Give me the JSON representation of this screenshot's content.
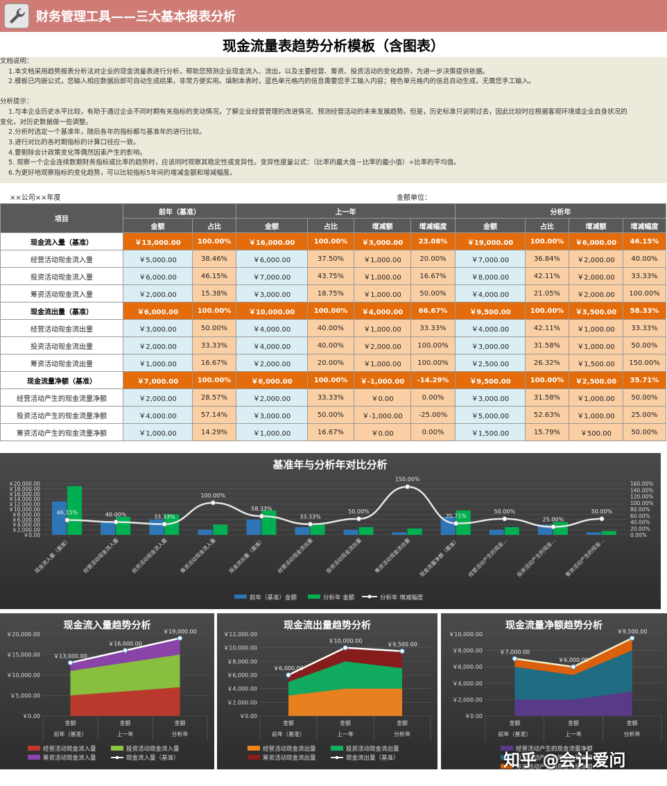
{
  "app": {
    "title": "财务管理工具——三大基本报表分析"
  },
  "document": {
    "title": "现金流量表趋势分析模板（含图表）"
  },
  "notes": {
    "doc_heading": "文档说明：",
    "doc_lines": [
      "1.本文档采用趋势报表分析法对企业的现金流量表进行分析，帮助您预测企业现金流入、流出，以及主要经营、筹资、投资活动的变化趋势，为进一步决策提供依据。",
      "2.模板已内嵌公式，您输入相应数据后即可自动生成结果，非常方便实用。填制本表时，蓝色单元格内的信息需要您手工输入内容；橙色单元格内的信息自动生成，无需您手工输入。"
    ],
    "tips_heading": "分析提示：",
    "tips_lines": [
      "1.与本企业历史水平比较，有助于通过企业不同时期有关指标的变动情况，了解企业经营管理的改进情况、预测经营活动的未来发展趋势。但是，历史标准只说明过去，因此比较时应根据客观环境或企业自身状况的",
      "变化，对历史数据做一些调整。",
      "2.分析时选定一个基准年，随后各年的指标都与基准年的进行比较。",
      "3.进行对比的各时期指标的计算口径应一致。",
      "4.要剔除会计政策变化等偶然因素产生的影响。",
      "5. 观察一个企业连续数期财务指标或比率的趋势时，应该同时观察其稳定性或变异性。变异性度量公式：（比率的最大值－比率的最小值）÷比率的平均值。",
      "6.为更好地观察指标的变化趋势，可以比较指标5年间的增减金额和增减幅度。"
    ]
  },
  "meta": {
    "company": "××公司××年度",
    "unit": "金额单位："
  },
  "table": {
    "item_header": "项目",
    "groups": [
      "前年（基准）",
      "上一年",
      "分析年"
    ],
    "sub_base": [
      "金额",
      "占比"
    ],
    "sub_other": [
      "金额",
      "占比",
      "增减额",
      "增减幅度"
    ],
    "rows": [
      {
        "name": "现金流入量（基准）",
        "total": true,
        "v": [
          "￥13,000.00",
          "100.00%",
          "￥16,000.00",
          "100.00%",
          "￥3,000.00",
          "23.08%",
          "￥19,000.00",
          "100.00%",
          "￥6,000.00",
          "46.15%"
        ]
      },
      {
        "name": "经营活动现金流入量",
        "total": false,
        "v": [
          "￥5,000.00",
          "38.46%",
          "￥6,000.00",
          "37.50%",
          "￥1,000.00",
          "20.00%",
          "￥7,000.00",
          "36.84%",
          "￥2,000.00",
          "40.00%"
        ]
      },
      {
        "name": "投资活动现金流入量",
        "total": false,
        "v": [
          "￥6,000.00",
          "46.15%",
          "￥7,000.00",
          "43.75%",
          "￥1,000.00",
          "16.67%",
          "￥8,000.00",
          "42.11%",
          "￥2,000.00",
          "33.33%"
        ]
      },
      {
        "name": "筹资活动现金流入量",
        "total": false,
        "v": [
          "￥2,000.00",
          "15.38%",
          "￥3,000.00",
          "18.75%",
          "￥1,000.00",
          "50.00%",
          "￥4,000.00",
          "21.05%",
          "￥2,000.00",
          "100.00%"
        ]
      },
      {
        "name": "现金流出量（基准）",
        "total": true,
        "v": [
          "￥6,000.00",
          "100.00%",
          "￥10,000.00",
          "100.00%",
          "￥4,000.00",
          "66.67%",
          "￥9,500.00",
          "100.00%",
          "￥3,500.00",
          "58.33%"
        ]
      },
      {
        "name": "经营活动现金流出量",
        "total": false,
        "v": [
          "￥3,000.00",
          "50.00%",
          "￥4,000.00",
          "40.00%",
          "￥1,000.00",
          "33.33%",
          "￥4,000.00",
          "42.11%",
          "￥1,000.00",
          "33.33%"
        ]
      },
      {
        "name": "投资活动现金流出量",
        "total": false,
        "v": [
          "￥2,000.00",
          "33.33%",
          "￥4,000.00",
          "40.00%",
          "￥2,000.00",
          "100.00%",
          "￥3,000.00",
          "31.58%",
          "￥1,000.00",
          "50.00%"
        ]
      },
      {
        "name": "筹资活动现金流出量",
        "total": false,
        "v": [
          "￥1,000.00",
          "16.67%",
          "￥2,000.00",
          "20.00%",
          "￥1,000.00",
          "100.00%",
          "￥2,500.00",
          "26.32%",
          "￥1,500.00",
          "150.00%"
        ]
      },
      {
        "name": "现金流量净额（基准）",
        "total": true,
        "v": [
          "￥7,000.00",
          "100.00%",
          "￥6,000.00",
          "100.00%",
          "￥-1,000.00",
          "-14.29%",
          "￥9,500.00",
          "100.00%",
          "￥2,500.00",
          "35.71%"
        ]
      },
      {
        "name": "经营活动产生的现金流量净额",
        "total": false,
        "v": [
          "￥2,000.00",
          "28.57%",
          "￥2,000.00",
          "33.33%",
          "￥0.00",
          "0.00%",
          "￥3,000.00",
          "31.58%",
          "￥1,000.00",
          "50.00%"
        ]
      },
      {
        "name": "投资活动产生的现金流量净额",
        "total": false,
        "v": [
          "￥4,000.00",
          "57.14%",
          "￥3,000.00",
          "50.00%",
          "￥-1,000.00",
          "-25.00%",
          "￥5,000.00",
          "52.63%",
          "￥1,000.00",
          "25.00%"
        ]
      },
      {
        "name": "筹资活动产生的现金流量净额",
        "total": false,
        "v": [
          "￥1,000.00",
          "14.29%",
          "￥1,000.00",
          "16.67%",
          "￥0.00",
          "0.00%",
          "￥1,500.00",
          "15.79%",
          "￥500.00",
          "50.00%"
        ]
      }
    ]
  },
  "chart_data": [
    {
      "type": "bar",
      "title": "基准年与分析年对比分析",
      "categories": [
        "现金流入量（基准）",
        "经营活动现金流入量",
        "投资活动现金流入量",
        "筹资活动现金流入量",
        "现金流出量（基准）",
        "经营活动现金流出量",
        "投资活动现金流出量",
        "筹资活动现金流出量",
        "现金流量净额（基准）",
        "经营活动产生的现金…",
        "投资活动产生的现金…",
        "筹资活动产生的现金…"
      ],
      "series": [
        {
          "name": "前年（基准）金额",
          "color": "#2e75b6",
          "values": [
            13000,
            5000,
            6000,
            2000,
            6000,
            3000,
            2000,
            1000,
            7000,
            2000,
            4000,
            1000
          ]
        },
        {
          "name": "分析年 金额",
          "color": "#00b050",
          "values": [
            19000,
            7000,
            8000,
            4000,
            9500,
            4000,
            3000,
            2500,
            9500,
            3000,
            5000,
            1500
          ]
        },
        {
          "name": "分析年 增减幅度",
          "color": "#ffffff",
          "axis": "right",
          "values": [
            46.15,
            40.0,
            33.33,
            100.0,
            58.33,
            33.33,
            50.0,
            150.0,
            35.71,
            50.0,
            25.0,
            50.0
          ],
          "labels": [
            "46.15%",
            "40.00%",
            "33.33%",
            "100.00%",
            "58.33%",
            "33.33%",
            "50.00%",
            "150.00%",
            "35.71%",
            "50.00%",
            "25.00%",
            "50.00%"
          ]
        }
      ],
      "ylim": [
        0,
        20000
      ],
      "yticks": [
        "￥0.00",
        "￥2,000.00",
        "￥4,000.00",
        "￥6,000.00",
        "￥8,000.00",
        "￥10,000.00",
        "￥12,000.00",
        "￥14,000.00",
        "￥16,000.00",
        "￥18,000.00",
        "￥20,000.00"
      ],
      "y2lim": [
        0,
        160
      ],
      "y2ticks": [
        "0.00%",
        "20.00%",
        "40.00%",
        "60.00%",
        "80.00%",
        "100.00%",
        "120.00%",
        "140.00%",
        "160.00%"
      ],
      "legend": "bottom"
    },
    {
      "type": "area",
      "title": "现金流入量趋势分析",
      "x": [
        "前年（基准）",
        "上一年",
        "分析年"
      ],
      "xsub": "金额",
      "series": [
        {
          "name": "经营活动现金流入量",
          "color": "#c0392b",
          "values": [
            5000,
            6000,
            7000
          ]
        },
        {
          "name": "投资活动现金流入量",
          "color": "#8cc63e",
          "values": [
            6000,
            7000,
            8000
          ]
        },
        {
          "name": "筹资活动现金流入量",
          "color": "#8e44ad",
          "values": [
            2000,
            3000,
            4000
          ]
        },
        {
          "name": "现金流入量（基准）",
          "color": "#ffffff",
          "line": true,
          "values": [
            13000,
            16000,
            19000
          ],
          "labels": [
            "￥13,000.00",
            "￥16,000.00",
            "￥19,000.00"
          ]
        }
      ],
      "ylim": [
        0,
        20000
      ],
      "yticks": [
        "￥0.00",
        "￥5,000.00",
        "￥10,000.00",
        "￥15,000.00",
        "￥20,000.00"
      ],
      "legend": "bottom"
    },
    {
      "type": "area",
      "title": "现金流出量趋势分析",
      "x": [
        "前年（基准）",
        "上一年",
        "分析年"
      ],
      "xsub": "金额",
      "series": [
        {
          "name": "经营活动现金流出量",
          "color": "#f0841e",
          "values": [
            3000,
            4000,
            4000
          ]
        },
        {
          "name": "投资活动现金流出量",
          "color": "#10b060",
          "values": [
            2000,
            4000,
            3000
          ]
        },
        {
          "name": "筹资活动现金流出量",
          "color": "#8b1a1a",
          "values": [
            1000,
            2000,
            2500
          ]
        },
        {
          "name": "现金流出量（基准）",
          "color": "#ffffff",
          "line": true,
          "values": [
            6000,
            10000,
            9500
          ],
          "labels": [
            "￥6,000.00",
            "￥10,000.00",
            "￥9,500.00"
          ]
        }
      ],
      "ylim": [
        0,
        12000
      ],
      "yticks": [
        "￥0.00",
        "￥2,000.00",
        "￥4,000.00",
        "￥6,000.00",
        "￥8,000.00",
        "￥10,000.00",
        "￥12,000.00"
      ],
      "legend": "bottom"
    },
    {
      "type": "area",
      "title": "现金流量净额趋势分析",
      "x": [
        "前年（基准）",
        "上一年",
        "分析年"
      ],
      "xsub": "金额",
      "series": [
        {
          "name": "经营活动产生的现金流量净额",
          "color": "#5b3a8c",
          "values": [
            2000,
            2000,
            3000
          ]
        },
        {
          "name": "投资活动产生的现金流量净额",
          "color": "#1f6f86",
          "values": [
            4000,
            3000,
            5000
          ]
        },
        {
          "name": "筹资活动产生的现金流量净额",
          "color": "#e3620b",
          "values": [
            1000,
            1000,
            1500
          ]
        },
        {
          "name": "现金流量净额（基准）",
          "color": "#f2f0c8",
          "line": true,
          "values": [
            7000,
            6000,
            9500
          ],
          "labels": [
            "￥7,000.00",
            "￥6,000.00",
            "￥9,500.00"
          ]
        }
      ],
      "ylim": [
        0,
        10000
      ],
      "yticks": [
        "￥0.00",
        "￥2,000.00",
        "￥4,000.00",
        "￥6,000.00",
        "￥8,000.00",
        "￥10,000.00"
      ],
      "legend": "bottom"
    }
  ],
  "watermark": "知乎 @会计爱问",
  "colors": {
    "titlebar": "#cf7c76",
    "total": "#e46c0a",
    "input": "#dbeef4",
    "calc": "#fbcfa4",
    "header": "#595959"
  }
}
